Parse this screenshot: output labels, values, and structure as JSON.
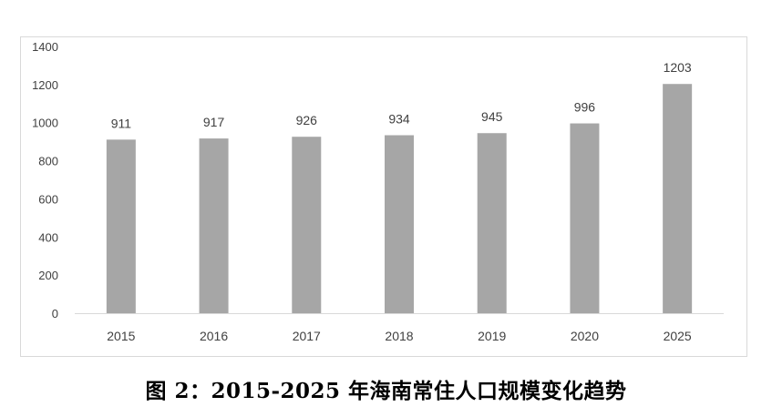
{
  "chart_data": {
    "type": "bar",
    "title": "",
    "xlabel": "",
    "ylabel": "",
    "categories": [
      "2015",
      "2016",
      "2017",
      "2018",
      "2019",
      "2020",
      "2025"
    ],
    "values": [
      911,
      917,
      926,
      934,
      945,
      996,
      1203
    ],
    "data_labels": [
      "911",
      "917",
      "926",
      "934",
      "945",
      "996",
      "1203"
    ],
    "ylim": [
      0,
      1400
    ],
    "yticks": [
      "0",
      "200",
      "400",
      "600",
      "800",
      "1000",
      "1200",
      "1400"
    ],
    "ytick_values": [
      0,
      200,
      400,
      600,
      800,
      1000,
      1200,
      1400
    ],
    "grid": false,
    "legend": "none",
    "bar_color": "#a6a6a6",
    "axis_color": "#d9d9d9",
    "label_color": "#404040"
  },
  "caption": "图 2：2015-2025 年海南常住人口规模变化趋势"
}
